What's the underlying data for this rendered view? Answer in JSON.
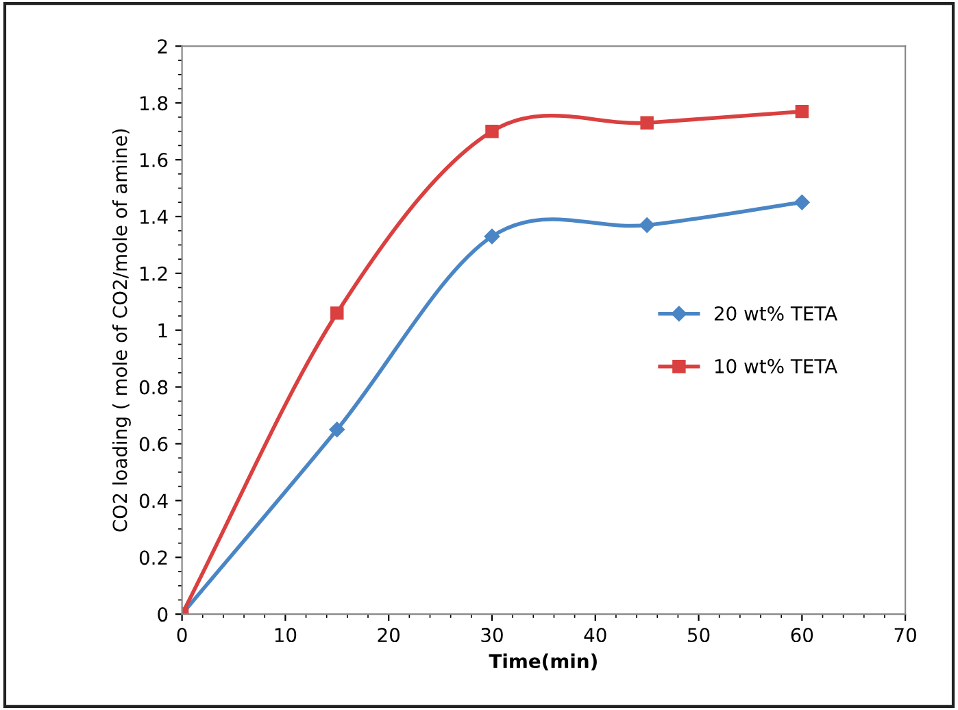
{
  "chart_data": {
    "type": "line",
    "xlabel": "Time(min)",
    "ylabel": "CO2 loading ( mole of CO2/mole of amine)",
    "x": [
      0,
      15,
      30,
      45,
      60
    ],
    "series": [
      {
        "name": "20 wt% TETA",
        "color": "#4a86c5",
        "marker": "diamond",
        "values": [
          0,
          0.65,
          1.33,
          1.37,
          1.45
        ]
      },
      {
        "name": "10 wt% TETA",
        "color": "#d9403f",
        "marker": "square",
        "values": [
          0,
          1.06,
          1.7,
          1.73,
          1.77
        ]
      }
    ],
    "xlim": [
      0,
      70
    ],
    "xticks": [
      0,
      10,
      20,
      30,
      40,
      50,
      60,
      70
    ],
    "ylim": [
      0,
      2
    ],
    "yticks": [
      0,
      0.2,
      0.4,
      0.6,
      0.8,
      1,
      1.2,
      1.4,
      1.6,
      1.8,
      2
    ],
    "grid": false,
    "legend": "right",
    "line_style": "solid"
  }
}
